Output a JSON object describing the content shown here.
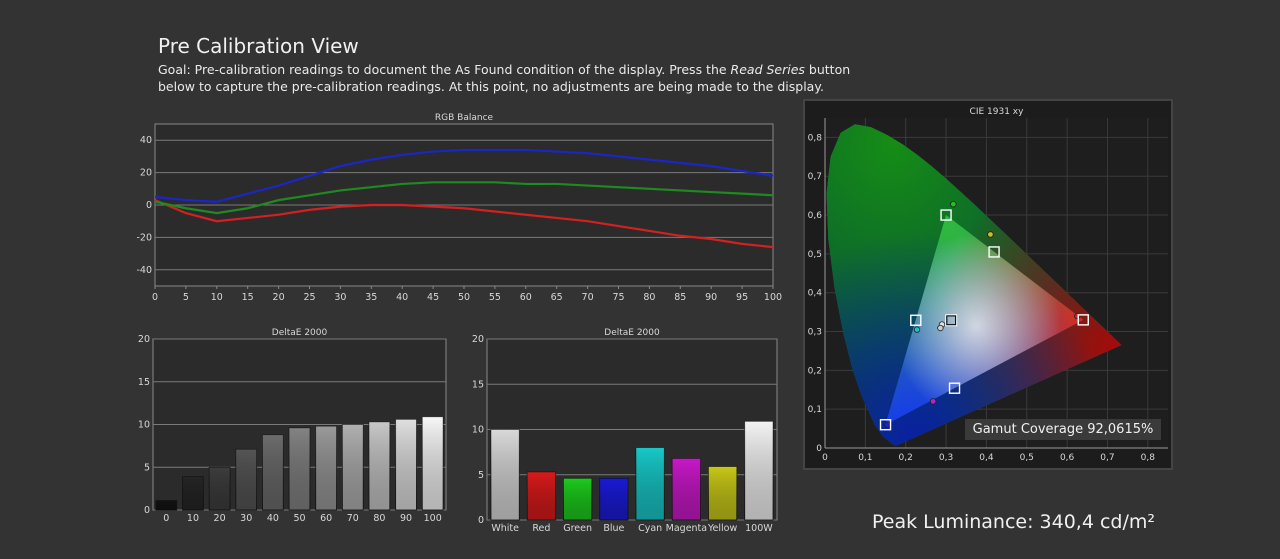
{
  "page": {
    "title": "Pre Calibration View",
    "goal_prefix": "Goal: Pre-calibration readings to document the As Found condition of the display. Press the ",
    "goal_emphasis": "Read Series",
    "goal_suffix": " button below to capture the pre-calibration readings. At this point, no adjustments are being made to the display.",
    "peak_luminance": "Peak Luminance: 340,4 cd/m²",
    "gamut_coverage": "Gamut Coverage 92,0615%"
  },
  "chart_data": [
    {
      "id": "rgb",
      "type": "line",
      "title": "RGB Balance",
      "x": [
        0,
        5,
        10,
        15,
        20,
        25,
        30,
        35,
        40,
        45,
        50,
        55,
        60,
        65,
        70,
        75,
        80,
        85,
        90,
        95,
        100
      ],
      "xlim": [
        0,
        100
      ],
      "ylim": [
        -50,
        50
      ],
      "yticks": [
        40,
        20,
        0,
        -20,
        -40
      ],
      "xticks": [
        0,
        5,
        10,
        15,
        20,
        25,
        30,
        35,
        40,
        45,
        50,
        55,
        60,
        65,
        70,
        75,
        80,
        85,
        90,
        95,
        100
      ],
      "grid": true,
      "series": [
        {
          "color": "#d42020",
          "values": [
            3,
            -5,
            -10,
            -8,
            -6,
            -3,
            -1,
            0,
            0,
            -1,
            -2,
            -4,
            -6,
            -8,
            -10,
            -13,
            -16,
            -19,
            -21,
            -24,
            -26
          ]
        },
        {
          "color": "#1f8a1f",
          "values": [
            2,
            -2,
            -5,
            -2,
            3,
            6,
            9,
            11,
            13,
            14,
            14,
            14,
            13,
            13,
            12,
            11,
            10,
            9,
            8,
            7,
            6
          ]
        },
        {
          "color": "#1a26c8",
          "values": [
            5,
            3,
            2,
            7,
            12,
            18,
            24,
            28,
            31,
            33,
            34,
            34,
            34,
            33,
            32,
            30,
            28,
            26,
            24,
            21,
            18
          ]
        }
      ]
    },
    {
      "id": "grayscale",
      "type": "bar",
      "title": "DeltaE 2000",
      "categories": [
        "0",
        "10",
        "20",
        "30",
        "40",
        "50",
        "60",
        "70",
        "80",
        "90",
        "100"
      ],
      "values": [
        1.1,
        3.9,
        5.0,
        7.1,
        8.8,
        9.6,
        9.8,
        10.0,
        10.3,
        10.6,
        10.9
      ],
      "colors": [
        "#121212",
        "#252525",
        "#3d3d3d",
        "#555555",
        "#6c6c6c",
        "#838383",
        "#9a9a9a",
        "#b1b1b1",
        "#c8c8c8",
        "#e0e0e0",
        "#f7f7f7"
      ],
      "ylim": [
        0,
        20
      ],
      "yticks": [
        20,
        15,
        10,
        5,
        0
      ],
      "grid": true
    },
    {
      "id": "colors",
      "type": "bar",
      "title": "DeltaE 2000",
      "categories": [
        "White",
        "Red",
        "Green",
        "Blue",
        "Cyan",
        "Magenta",
        "Yellow",
        "100W"
      ],
      "values": [
        10.0,
        5.3,
        4.6,
        4.6,
        8.0,
        6.8,
        5.9,
        10.9
      ],
      "colors": [
        "#d9d9d9",
        "#d81a1a",
        "#1ccc1c",
        "#1a1ad8",
        "#18c8c8",
        "#c818c8",
        "#c8c818",
        "#f4f4f4"
      ],
      "ylim": [
        0,
        20
      ],
      "yticks": [
        20,
        15,
        10,
        5,
        0
      ],
      "grid": true
    },
    {
      "id": "cie",
      "type": "scatter",
      "title": "CIE 1931 xy",
      "xlim": [
        0,
        0.85
      ],
      "ylim": [
        0,
        0.85
      ],
      "xticks": [
        "0",
        "0,1",
        "0,2",
        "0,3",
        "0,4",
        "0,5",
        "0,6",
        "0,7",
        "0,8"
      ],
      "yticks": [
        "0,8",
        "0,7",
        "0,6",
        "0,5",
        "0,4",
        "0,3",
        "0,2",
        "0,1",
        "0"
      ],
      "grid": true,
      "targets": [
        {
          "name": "Red",
          "x": 0.64,
          "y": 0.33
        },
        {
          "name": "Green",
          "x": 0.3,
          "y": 0.6
        },
        {
          "name": "Blue",
          "x": 0.15,
          "y": 0.06
        },
        {
          "name": "Cyan",
          "x": 0.225,
          "y": 0.329
        },
        {
          "name": "Magenta",
          "x": 0.321,
          "y": 0.154
        },
        {
          "name": "Yellow",
          "x": 0.419,
          "y": 0.505
        },
        {
          "name": "White",
          "x": 0.3127,
          "y": 0.329
        }
      ],
      "measured": [
        {
          "name": "Red",
          "x": 0.625,
          "y": 0.34,
          "color": "#d02020"
        },
        {
          "name": "Green",
          "x": 0.318,
          "y": 0.628,
          "color": "#20c020"
        },
        {
          "name": "Blue",
          "x": 0.155,
          "y": 0.06,
          "color": "#2020d0"
        },
        {
          "name": "Cyan",
          "x": 0.228,
          "y": 0.305,
          "color": "#20c0c0"
        },
        {
          "name": "Magenta",
          "x": 0.268,
          "y": 0.12,
          "color": "#c020c0"
        },
        {
          "name": "Yellow",
          "x": 0.41,
          "y": 0.55,
          "color": "#c8c020"
        },
        {
          "name": "White",
          "x": 0.29,
          "y": 0.318,
          "color": "#e0e0e0"
        },
        {
          "name": "100W",
          "x": 0.286,
          "y": 0.309,
          "color": "#cccccc"
        }
      ]
    }
  ]
}
